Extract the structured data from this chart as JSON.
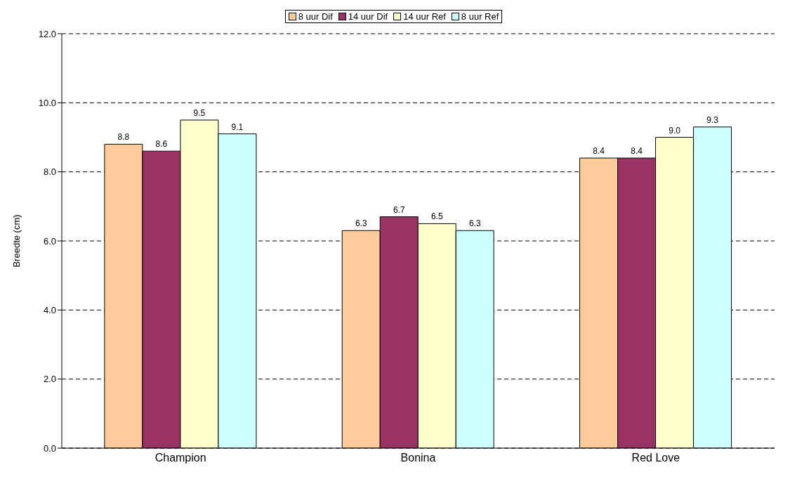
{
  "chart_data": {
    "type": "bar",
    "ylabel": "Breedte (cm)",
    "categories": [
      "Champion",
      "Bonina",
      "Red Love"
    ],
    "series": [
      {
        "name": "8 uur Dif",
        "color": "#ffcc99",
        "values": [
          8.8,
          6.3,
          8.4
        ],
        "value_labels": [
          "8.8",
          "6.3",
          "8.4"
        ]
      },
      {
        "name": "14 uur Dif",
        "color": "#993366",
        "values": [
          8.6,
          6.7,
          8.4
        ],
        "value_labels": [
          "8.6",
          "6.7",
          "8.4"
        ]
      },
      {
        "name": "14 uur Ref",
        "color": "#ffffcc",
        "values": [
          9.5,
          6.5,
          9.0
        ],
        "value_labels": [
          "9.5",
          "6.5",
          "9.0"
        ]
      },
      {
        "name": "8 uur Ref",
        "color": "#ccffff",
        "values": [
          9.1,
          6.3,
          9.3
        ],
        "value_labels": [
          "9.1",
          "6.3",
          "9.3"
        ]
      }
    ],
    "ylim": [
      0,
      12
    ],
    "yticks": [
      {
        "value": 0,
        "label": "0.0"
      },
      {
        "value": 2,
        "label": "2.0"
      },
      {
        "value": 4,
        "label": "4.0"
      },
      {
        "value": 6,
        "label": "6.0"
      },
      {
        "value": 8,
        "label": "8.0"
      },
      {
        "value": 10,
        "label": "10.0"
      },
      {
        "value": 12,
        "label": "12.0"
      }
    ],
    "grid": "y",
    "legend": "top"
  }
}
